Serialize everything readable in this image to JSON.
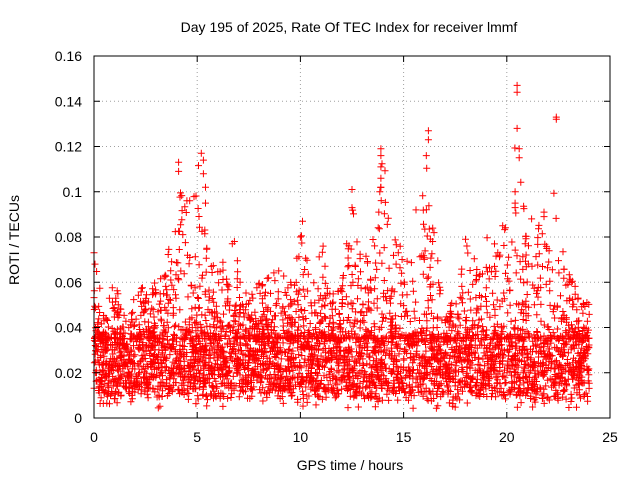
{
  "chart_data": {
    "type": "scatter",
    "title": "Day 195 of 2025, Rate Of TEC Index for receiver lmmf",
    "xlabel": "GPS time / hours",
    "ylabel": "ROTI / TECUs",
    "xlim": [
      0,
      25
    ],
    "ylim": [
      0,
      0.16
    ],
    "x_ticks": [
      0,
      5,
      10,
      15,
      20,
      25
    ],
    "x_tick_labels": [
      "0",
      "5",
      "10",
      "15",
      "20",
      "25"
    ],
    "y_ticks": [
      0,
      0.02,
      0.04,
      0.06,
      0.08,
      0.1,
      0.12,
      0.14,
      0.16
    ],
    "y_tick_labels": [
      "0",
      "0.02",
      "0.04",
      "0.06",
      "0.08",
      "0.1",
      "0.12",
      "0.14",
      "0.16"
    ],
    "grid": true,
    "marker": "+",
    "color": "#ff0000",
    "series": [
      {
        "name": "ROTI",
        "x_range": [
          0,
          24
        ],
        "baseline_range": [
          0.01,
          0.035
        ],
        "envelope": [
          {
            "x": 0.0,
            "y": 0.074
          },
          {
            "x": 0.5,
            "y": 0.045
          },
          {
            "x": 1.0,
            "y": 0.064
          },
          {
            "x": 1.5,
            "y": 0.045
          },
          {
            "x": 2.0,
            "y": 0.055
          },
          {
            "x": 2.5,
            "y": 0.06
          },
          {
            "x": 3.0,
            "y": 0.06
          },
          {
            "x": 3.5,
            "y": 0.065
          },
          {
            "x": 4.0,
            "y": 0.113
          },
          {
            "x": 4.5,
            "y": 0.096
          },
          {
            "x": 5.0,
            "y": 0.117
          },
          {
            "x": 5.5,
            "y": 0.075
          },
          {
            "x": 6.0,
            "y": 0.065
          },
          {
            "x": 6.5,
            "y": 0.078
          },
          {
            "x": 7.0,
            "y": 0.07
          },
          {
            "x": 7.5,
            "y": 0.055
          },
          {
            "x": 8.0,
            "y": 0.06
          },
          {
            "x": 8.5,
            "y": 0.068
          },
          {
            "x": 9.0,
            "y": 0.065
          },
          {
            "x": 9.5,
            "y": 0.06
          },
          {
            "x": 10.0,
            "y": 0.085
          },
          {
            "x": 10.5,
            "y": 0.07
          },
          {
            "x": 11.0,
            "y": 0.076
          },
          {
            "x": 11.5,
            "y": 0.06
          },
          {
            "x": 12.0,
            "y": 0.06
          },
          {
            "x": 12.5,
            "y": 0.101
          },
          {
            "x": 13.0,
            "y": 0.065
          },
          {
            "x": 13.5,
            "y": 0.09
          },
          {
            "x": 14.0,
            "y": 0.119
          },
          {
            "x": 14.5,
            "y": 0.085
          },
          {
            "x": 15.0,
            "y": 0.08
          },
          {
            "x": 15.5,
            "y": 0.07
          },
          {
            "x": 16.0,
            "y": 0.127
          },
          {
            "x": 16.5,
            "y": 0.09
          },
          {
            "x": 17.0,
            "y": 0.045
          },
          {
            "x": 17.5,
            "y": 0.055
          },
          {
            "x": 18.0,
            "y": 0.078
          },
          {
            "x": 18.5,
            "y": 0.07
          },
          {
            "x": 19.0,
            "y": 0.08
          },
          {
            "x": 19.5,
            "y": 0.085
          },
          {
            "x": 20.0,
            "y": 0.085
          },
          {
            "x": 20.5,
            "y": 0.147
          },
          {
            "x": 21.0,
            "y": 0.08
          },
          {
            "x": 21.5,
            "y": 0.09
          },
          {
            "x": 22.0,
            "y": 0.08
          },
          {
            "x": 22.5,
            "y": 0.133
          },
          {
            "x": 23.0,
            "y": 0.065
          },
          {
            "x": 23.5,
            "y": 0.06
          },
          {
            "x": 24.0,
            "y": 0.05
          }
        ],
        "notable_points": [
          {
            "x": 0.0,
            "y": 0.073
          },
          {
            "x": 0.05,
            "y": 0.068
          },
          {
            "x": 4.1,
            "y": 0.113
          },
          {
            "x": 4.1,
            "y": 0.109
          },
          {
            "x": 4.5,
            "y": 0.096
          },
          {
            "x": 5.2,
            "y": 0.117
          },
          {
            "x": 5.3,
            "y": 0.114
          },
          {
            "x": 5.3,
            "y": 0.108
          },
          {
            "x": 5.4,
            "y": 0.102
          },
          {
            "x": 5.4,
            "y": 0.095
          },
          {
            "x": 12.5,
            "y": 0.101
          },
          {
            "x": 12.5,
            "y": 0.093
          },
          {
            "x": 13.9,
            "y": 0.119
          },
          {
            "x": 13.9,
            "y": 0.116
          },
          {
            "x": 13.9,
            "y": 0.111
          },
          {
            "x": 13.9,
            "y": 0.106
          },
          {
            "x": 13.9,
            "y": 0.102
          },
          {
            "x": 13.8,
            "y": 0.091
          },
          {
            "x": 16.2,
            "y": 0.127
          },
          {
            "x": 16.2,
            "y": 0.123
          },
          {
            "x": 16.1,
            "y": 0.116
          },
          {
            "x": 15.6,
            "y": 0.092
          },
          {
            "x": 20.5,
            "y": 0.147
          },
          {
            "x": 20.5,
            "y": 0.144
          },
          {
            "x": 20.5,
            "y": 0.128
          },
          {
            "x": 20.6,
            "y": 0.119
          },
          {
            "x": 20.6,
            "y": 0.115
          },
          {
            "x": 20.4,
            "y": 0.1
          },
          {
            "x": 20.4,
            "y": 0.095
          },
          {
            "x": 20.4,
            "y": 0.093
          },
          {
            "x": 22.4,
            "y": 0.133
          },
          {
            "x": 22.4,
            "y": 0.132
          },
          {
            "x": 21.8,
            "y": 0.091
          },
          {
            "x": 21.8,
            "y": 0.089
          },
          {
            "x": 10.1,
            "y": 0.087
          },
          {
            "x": 10.0,
            "y": 0.08
          },
          {
            "x": 11.1,
            "y": 0.076
          },
          {
            "x": 6.8,
            "y": 0.078
          },
          {
            "x": 6.7,
            "y": 0.077
          },
          {
            "x": 18.0,
            "y": 0.079
          },
          {
            "x": 19.8,
            "y": 0.085
          },
          {
            "x": 21.2,
            "y": 0.088
          }
        ]
      }
    ]
  }
}
